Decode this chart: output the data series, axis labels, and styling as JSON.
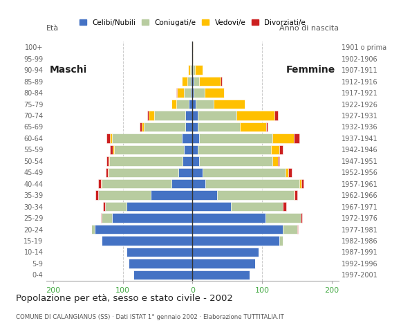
{
  "age_groups": [
    "0-4",
    "5-9",
    "10-14",
    "15-19",
    "20-24",
    "25-29",
    "30-34",
    "35-39",
    "40-44",
    "45-49",
    "50-54",
    "55-59",
    "60-64",
    "65-69",
    "70-74",
    "75-79",
    "80-84",
    "85-89",
    "90-94",
    "95-99",
    "100+"
  ],
  "birth_years": [
    "1997-2001",
    "1992-1996",
    "1987-1991",
    "1982-1986",
    "1977-1981",
    "1972-1976",
    "1967-1971",
    "1962-1966",
    "1957-1961",
    "1952-1956",
    "1947-1951",
    "1942-1946",
    "1937-1941",
    "1932-1936",
    "1927-1931",
    "1922-1926",
    "1917-1921",
    "1912-1916",
    "1907-1911",
    "1902-1906",
    "1901 o prima"
  ],
  "males": {
    "celibe": [
      85,
      92,
      95,
      130,
      140,
      115,
      95,
      60,
      30,
      20,
      14,
      12,
      15,
      10,
      10,
      5,
      2,
      2,
      1,
      0,
      0
    ],
    "coniugato": [
      0,
      0,
      0,
      0,
      5,
      15,
      30,
      75,
      100,
      100,
      105,
      100,
      100,
      60,
      45,
      18,
      10,
      5,
      2,
      0,
      0
    ],
    "vedovo": [
      0,
      0,
      0,
      0,
      0,
      0,
      0,
      0,
      1,
      1,
      1,
      2,
      3,
      3,
      8,
      7,
      10,
      8,
      3,
      0,
      0
    ],
    "divorziato": [
      0,
      0,
      0,
      0,
      0,
      1,
      3,
      4,
      4,
      3,
      3,
      4,
      5,
      3,
      2,
      0,
      1,
      0,
      0,
      0,
      0
    ]
  },
  "females": {
    "celibe": [
      82,
      90,
      95,
      125,
      130,
      105,
      55,
      35,
      18,
      14,
      10,
      8,
      10,
      8,
      8,
      5,
      2,
      2,
      1,
      0,
      0
    ],
    "coniugato": [
      0,
      0,
      0,
      5,
      20,
      50,
      75,
      110,
      135,
      120,
      105,
      105,
      105,
      60,
      55,
      25,
      15,
      8,
      3,
      0,
      0
    ],
    "vedovo": [
      0,
      0,
      0,
      0,
      0,
      0,
      0,
      1,
      3,
      3,
      8,
      12,
      30,
      38,
      55,
      45,
      28,
      30,
      10,
      1,
      1
    ],
    "divorziato": [
      0,
      0,
      0,
      0,
      1,
      2,
      5,
      4,
      3,
      5,
      2,
      5,
      8,
      2,
      5,
      0,
      0,
      2,
      0,
      0,
      0
    ]
  },
  "color_celibe": "#4472c4",
  "color_coniugato": "#b8cca0",
  "color_vedovo": "#ffc000",
  "color_divorziato": "#cc2020",
  "title": "Popolazione per età, sesso e stato civile - 2002",
  "subtitle": "COMUNE DI CALANGIANUS (SS) · Dati ISTAT 1° gennaio 2002 · Elaborazione TUTTITALIA.IT",
  "label_eta": "Età",
  "label_anno": "Anno di nascita",
  "label_maschi": "Maschi",
  "label_femmine": "Femmine",
  "legend_labels": [
    "Celibi/Nubili",
    "Coniugati/e",
    "Vedovi/e",
    "Divorziati/e"
  ],
  "xlim": 210,
  "xticks": [
    -200,
    -100,
    0,
    100,
    200
  ],
  "xticklabels": [
    "200",
    "100",
    "0",
    "100",
    "200"
  ]
}
